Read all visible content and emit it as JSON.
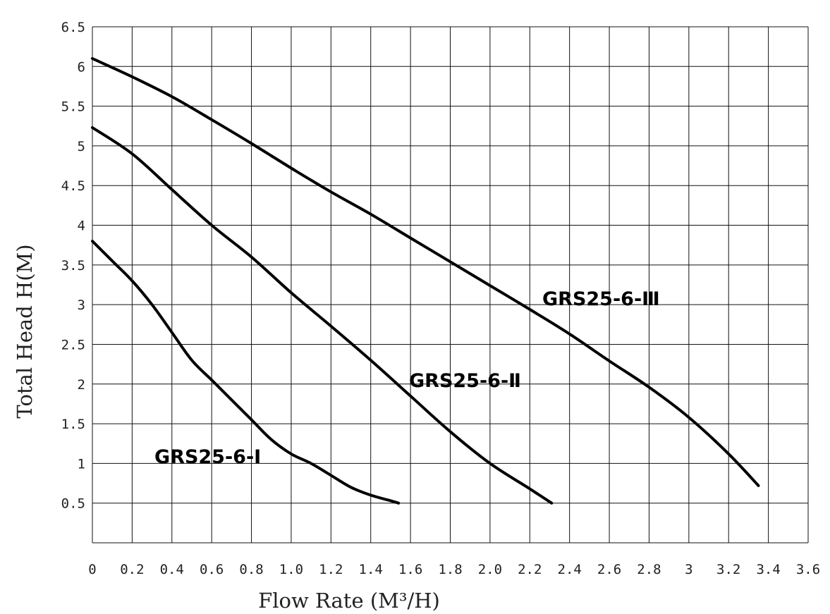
{
  "chart_data": {
    "type": "line",
    "title": "",
    "xlabel": "Flow Rate (M³/H)",
    "ylabel": "Total Head H(M)",
    "xlim": [
      0,
      3.6
    ],
    "ylim": [
      0,
      6.5
    ],
    "grid": true,
    "x_ticks": [
      "0",
      "0.2",
      "0.4",
      "0.6",
      "0.8",
      "1.0",
      "1.2",
      "1.4",
      "1.6",
      "1.8",
      "2.0",
      "2.2",
      "2.4",
      "2.6",
      "2.8",
      "3",
      "3.2",
      "3.4",
      "3.6"
    ],
    "y_ticks": [
      "0.5",
      "1",
      "1.5",
      "2",
      "2.5",
      "3",
      "3.5",
      "4",
      "4.5",
      "5",
      "5.5",
      "6",
      "6.5"
    ],
    "series": [
      {
        "name": "GRS25-6-Ⅰ",
        "x": [
          0,
          0.1,
          0.2,
          0.3,
          0.4,
          0.5,
          0.6,
          0.7,
          0.8,
          0.9,
          1.0,
          1.1,
          1.2,
          1.3,
          1.4,
          1.5,
          1.54
        ],
        "y": [
          3.8,
          3.55,
          3.3,
          3.0,
          2.65,
          2.3,
          2.05,
          1.8,
          1.55,
          1.3,
          1.12,
          1.0,
          0.85,
          0.7,
          0.6,
          0.53,
          0.5
        ]
      },
      {
        "name": "GRS25-6-Ⅱ",
        "x": [
          0,
          0.2,
          0.4,
          0.6,
          0.8,
          1.0,
          1.2,
          1.4,
          1.6,
          1.8,
          2.0,
          2.2,
          2.31
        ],
        "y": [
          5.23,
          4.9,
          4.45,
          4.0,
          3.6,
          3.15,
          2.73,
          2.3,
          1.85,
          1.4,
          1.0,
          0.68,
          0.5
        ]
      },
      {
        "name": "GRS25-6-Ⅲ",
        "x": [
          0,
          0.2,
          0.4,
          0.6,
          0.8,
          1.0,
          1.2,
          1.4,
          1.6,
          1.8,
          2.0,
          2.2,
          2.4,
          2.6,
          2.8,
          3.0,
          3.2,
          3.35
        ],
        "y": [
          6.1,
          5.87,
          5.62,
          5.33,
          5.03,
          4.72,
          4.42,
          4.14,
          3.84,
          3.54,
          3.24,
          2.94,
          2.63,
          2.29,
          1.96,
          1.58,
          1.12,
          0.72
        ]
      }
    ]
  }
}
